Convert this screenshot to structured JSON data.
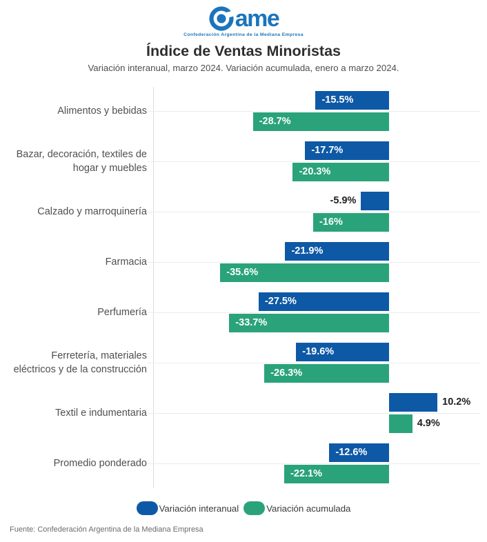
{
  "logo": {
    "brand_word": "ame",
    "mark": "came-circle-c-logo",
    "tagline": "Confederación Argentina de la Mediana Empresa",
    "brand_color": "#1b74bc"
  },
  "header": {
    "title": "Índice de Ventas Minoristas",
    "subtitle": "Variación interanual, marzo 2024. Variación acumulada, enero a marzo 2024."
  },
  "chart_data": {
    "type": "bar",
    "orientation": "horizontal",
    "title": "Índice de Ventas Minoristas",
    "subtitle": "Variación interanual, marzo 2024. Variación acumulada, enero a marzo 2024.",
    "xlabel": "",
    "ylabel": "",
    "xlim": [
      -50,
      19
    ],
    "grid": "category-centerlines-and-left-axis",
    "legend_position": "bottom-center",
    "unit": "%",
    "categories": [
      "Alimentos y bebidas",
      "Bazar, decoración, textiles de\nhogar y muebles",
      "Calzado y marroquinería",
      "Farmacia",
      "Perfumería",
      "Ferretería, materiales\neléctricos y de la construcción",
      "Textil e indumentaria",
      "Promedio ponderado"
    ],
    "series": [
      {
        "name": "Variación interanual",
        "color": "#0e59a6",
        "values": [
          -15.5,
          -17.7,
          -5.9,
          -21.9,
          -27.5,
          -19.6,
          10.2,
          -12.6
        ],
        "labels": [
          "-15.5%",
          "-17.7%",
          "-5.9%",
          "-21.9%",
          "-27.5%",
          "-19.6%",
          "10.2%",
          "-12.6%"
        ]
      },
      {
        "name": "Variación acumulada",
        "color": "#2aa37a",
        "values": [
          -28.7,
          -20.3,
          -16,
          -35.6,
          -33.7,
          -26.3,
          4.9,
          -22.1
        ],
        "labels": [
          "-28.7%",
          "-20.3%",
          "-16%",
          "-35.6%",
          "-33.7%",
          "-26.3%",
          "4.9%",
          "-22.1%"
        ]
      }
    ]
  },
  "legend": {
    "items": [
      {
        "label": "Variación interanual",
        "color": "#0e59a6"
      },
      {
        "label": "Variación acumulada",
        "color": "#2aa37a"
      }
    ]
  },
  "footer": {
    "source": "Fuente: Confederación Argentina de la Mediana Empresa"
  }
}
